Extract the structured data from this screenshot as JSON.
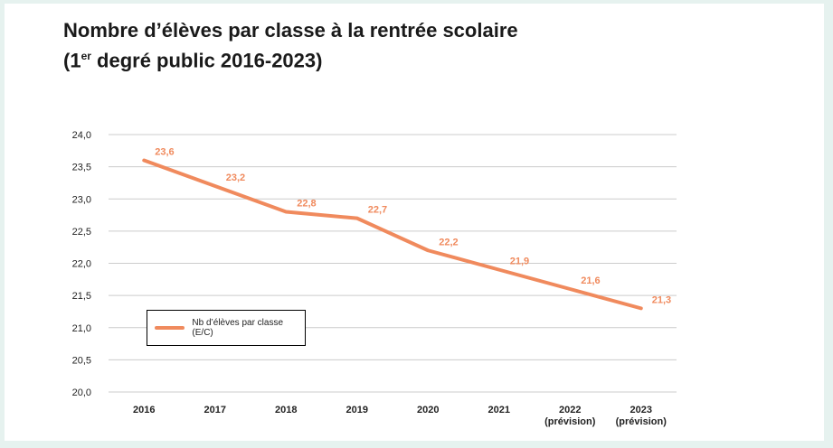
{
  "title": {
    "line1": "Nombre d’élèves par classe à la rentrée scolaire",
    "line2_pre": "(1",
    "line2_sup": "er",
    "line2_post": " degré public 2016-2023)"
  },
  "colors": {
    "line": "#f08a5d",
    "label": "#f08a5d",
    "grid": "#cccccc"
  },
  "chart_data": {
    "type": "line",
    "categories": [
      "2016",
      "2017",
      "2018",
      "2019",
      "2020",
      "2021",
      "2022\n(prévision)",
      "2023\n(prévision)"
    ],
    "series": [
      {
        "name": "Nb d’élèves par classe (E/C)",
        "values": [
          23.6,
          23.2,
          22.8,
          22.7,
          22.2,
          21.9,
          21.6,
          21.3
        ]
      }
    ],
    "data_labels": [
      "23,6",
      "23,2",
      "22,8",
      "22,7",
      "22,2",
      "21,9",
      "21,6",
      "21,3"
    ],
    "ylim": [
      20.0,
      24.0
    ],
    "yticks": [
      24.0,
      23.5,
      23.0,
      22.5,
      22.0,
      21.5,
      21.0,
      20.5,
      20.0
    ],
    "ytick_labels": [
      "24,0",
      "23,5",
      "23,0",
      "22,5",
      "22,0",
      "21,5",
      "21,0",
      "20,5",
      "20,0"
    ],
    "grid": true,
    "legend_position": "left"
  }
}
